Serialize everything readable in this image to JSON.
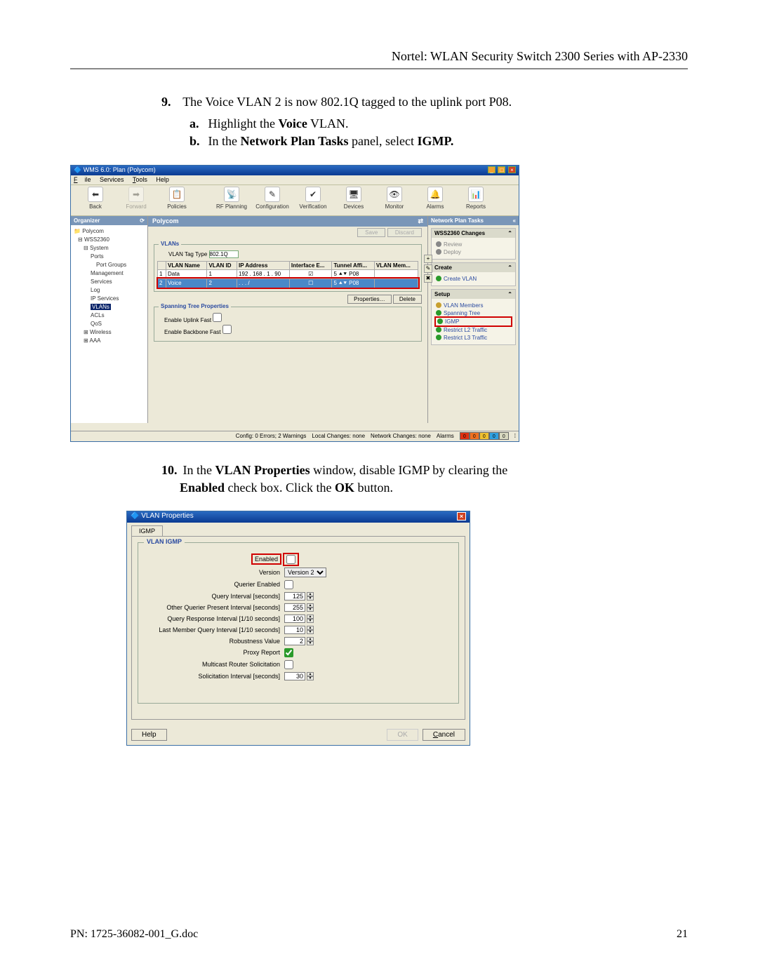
{
  "doc_header": "Nortel: WLAN Security Switch 2300 Series with AP-2330",
  "step9": {
    "num": "9.",
    "text_a": "The Voice VLAN 2 is now 802.1Q tagged to the uplink port P08.",
    "a_num": "a.",
    "a_pre": "Highlight the ",
    "a_bold": "Voice",
    "a_post": " VLAN.",
    "b_num": "b.",
    "b_pre": "In the ",
    "b_bold1": "Network Plan Tasks",
    "b_mid": " panel, select ",
    "b_bold2": "IGMP."
  },
  "step10": {
    "num": "10.",
    "pre": "In the ",
    "b1": "VLAN Properties",
    "mid1": " window, disable IGMP by clearing the ",
    "b2": "Enabled",
    "mid2": " check box. Click the ",
    "b3": "OK",
    "post": " button."
  },
  "wms": {
    "title": "WMS 6.0: Plan (Polycom)",
    "menus": {
      "file": "File",
      "services": "Services",
      "tools": "Tools",
      "help": "Help"
    },
    "tools": {
      "back": "Back",
      "forward": "Forward",
      "policies": "Policies",
      "rfplan": "RF Planning",
      "config": "Configuration",
      "verify": "Verification",
      "devices": "Devices",
      "monitor": "Monitor",
      "alarms": "Alarms",
      "reports": "Reports"
    },
    "organizer_head": "Organizer",
    "tree": {
      "root": "Polycom",
      "ws": "WSS2360",
      "system": "System",
      "ports": "Ports",
      "portgroups": "Port Groups",
      "mgmt": "Management Services",
      "log": "Log",
      "ipserv": "IP Services",
      "vlans": "VLANs",
      "acls": "ACLs",
      "qos": "QoS",
      "wireless": "Wireless",
      "aaa": "AAA"
    },
    "center_head": "Polycom",
    "save": "Save",
    "discard": "Discard",
    "vlans_legend": "VLANs",
    "tagtype_label": "VLAN Tag Type",
    "tagtype_val": "802.1Q",
    "cols": {
      "name": "VLAN Name",
      "id": "VLAN ID",
      "ip": "IP Address",
      "if": "Interface E...",
      "tun": "Tunnel Affi...",
      "mem": "VLAN Mem..."
    },
    "rows": [
      {
        "n": "1",
        "name": "Data",
        "id": "1",
        "ip": "192 . 168 . 1 . 90",
        "if": true,
        "tun": "5",
        "mem": "P08"
      },
      {
        "n": "2",
        "name": "Voice",
        "id": "2",
        "ip": " .  .  . /",
        "if": false,
        "tun": "5",
        "mem": "P08"
      }
    ],
    "props_btn": "Properties…",
    "delete_btn": "Delete",
    "stp_legend": "Spanning Tree Properties",
    "stp_uplink": "Enable Uplink Fast",
    "stp_backbone": "Enable Backbone Fast",
    "task_head": "Network Plan Tasks",
    "task_changes": "WSS2360 Changes",
    "review": "Review",
    "deploy": "Deploy",
    "task_create_h": "Create",
    "create_vlan": "Create VLAN",
    "task_setup_h": "Setup",
    "setup_items": {
      "members": "VLAN Members",
      "stp": "Spanning Tree",
      "igmp": "IGMP",
      "l2": "Restrict L2 Traffic",
      "l3": "Restrict L3 Traffic"
    },
    "status": {
      "config": "Config: 0 Errors; 2 Warnings",
      "local": "Local Changes: none",
      "net": "Network Changes: none",
      "alarms": "Alarms"
    },
    "alarm_vals": [
      "0",
      "0",
      "0",
      "0",
      "0"
    ],
    "alarm_colors": [
      "#e03010",
      "#f07020",
      "#f0c030",
      "#30a0e0",
      "#d8d8c0"
    ]
  },
  "vp": {
    "title": "VLAN Properties",
    "tab": "IGMP",
    "legend": "VLAN IGMP",
    "rows": [
      {
        "label": "Enabled",
        "type": "check",
        "val": false,
        "hl": true
      },
      {
        "label": "Version",
        "type": "select",
        "val": "Version 2"
      },
      {
        "label": "Querier Enabled",
        "type": "check",
        "val": false
      },
      {
        "label": "Query Interval [seconds]",
        "type": "spin",
        "val": "125"
      },
      {
        "label": "Other Querier Present Interval [seconds]",
        "type": "spin",
        "val": "255"
      },
      {
        "label": "Query Response Interval [1/10 seconds]",
        "type": "spin",
        "val": "100"
      },
      {
        "label": "Last Member Query Interval [1/10 seconds]",
        "type": "spin",
        "val": "10"
      },
      {
        "label": "Robustness Value",
        "type": "spin",
        "val": "2"
      },
      {
        "label": "Proxy Report",
        "type": "check",
        "val": true
      },
      {
        "label": "Multicast Router Solicitation",
        "type": "check",
        "val": false
      },
      {
        "label": "Solicitation Interval [seconds]",
        "type": "spin",
        "val": "30"
      }
    ],
    "help": "Help",
    "ok": "OK",
    "cancel": "Cancel"
  },
  "footer": {
    "pn": "PN: 1725-36082-001_G.doc",
    "page": "21"
  }
}
